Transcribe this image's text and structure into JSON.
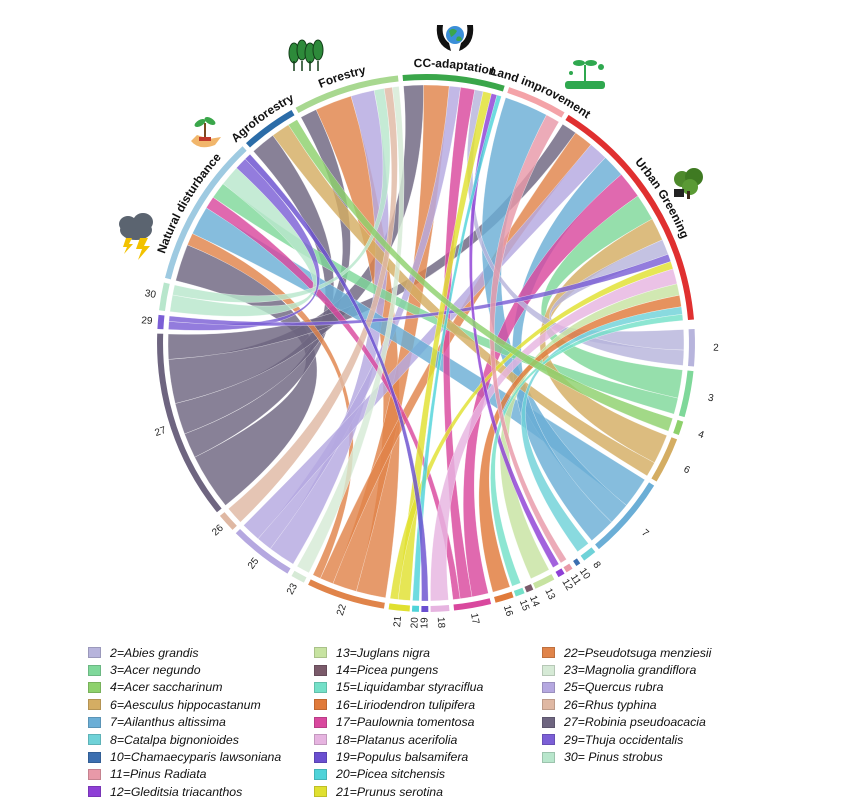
{
  "chart_data": {
    "type": "chord",
    "title": "",
    "sectors": [
      {
        "name": "Natural disturbance",
        "color": "#9ecae1",
        "icon": "storm-cloud-icon"
      },
      {
        "name": "Agroforestry",
        "color": "#2b6ca8",
        "icon": "hand-plant-icon"
      },
      {
        "name": "Forestry",
        "color": "#a8d890",
        "icon": "trees-icon"
      },
      {
        "name": "CC-adaptation",
        "color": "#3aa64a",
        "icon": "hands-globe-icon"
      },
      {
        "name": "Land improvement",
        "color": "#f4a3a8",
        "icon": "seedling-icon"
      },
      {
        "name": "Urban Greening",
        "color": "#e03030",
        "icon": "urban-tree-icon"
      }
    ],
    "species": [
      {
        "id": "2",
        "label": "2=Abies grandis",
        "color": "#b7b4dc"
      },
      {
        "id": "3",
        "label": "3=Acer negundo",
        "color": "#7fd89a"
      },
      {
        "id": "4",
        "label": "4=Acer saccharinum",
        "color": "#8ed16c"
      },
      {
        "id": "6",
        "label": "6=Aesculus hippocastanum",
        "color": "#d4ad63"
      },
      {
        "id": "7",
        "label": "7=Ailanthus altissima",
        "color": "#6baed6"
      },
      {
        "id": "8",
        "label": "8=Catalpa bignonioides",
        "color": "#6fd2d8"
      },
      {
        "id": "10",
        "label": "10=Chamaecyparis lawsoniana",
        "color": "#3b6fb0"
      },
      {
        "id": "11",
        "label": "11=Pinus Radiata",
        "color": "#e899a8"
      },
      {
        "id": "12",
        "label": "12=Gleditsia triacanthos",
        "color": "#8e3fd6"
      },
      {
        "id": "13",
        "label": "13=Juglans nigra",
        "color": "#c7e3a1"
      },
      {
        "id": "14",
        "label": "14=Picea pungens",
        "color": "#7a5a6a"
      },
      {
        "id": "15",
        "label": "15=Liquidambar styraciflua",
        "color": "#74e0c8"
      },
      {
        "id": "16",
        "label": "16=Liriodendron tulipifera",
        "color": "#e07a3a"
      },
      {
        "id": "17",
        "label": "17=Paulownia tomentosa",
        "color": "#d9489e"
      },
      {
        "id": "18",
        "label": "18=Platanus acerifolia",
        "color": "#e6b4e0"
      },
      {
        "id": "19",
        "label": "19=Populus balsamifera",
        "color": "#6a4fd0"
      },
      {
        "id": "20",
        "label": "20=Picea sitchensis",
        "color": "#4fd3d9"
      },
      {
        "id": "21",
        "label": "21=Prunus serotina",
        "color": "#e0e030"
      },
      {
        "id": "22",
        "label": "22=Pseudotsuga menziesii",
        "color": "#e0844a"
      },
      {
        "id": "23",
        "label": "23=Magnolia grandiflora",
        "color": "#d6ead6"
      },
      {
        "id": "25",
        "label": "25=Quercus rubra",
        "color": "#b5a8e0"
      },
      {
        "id": "26",
        "label": "26=Rhus typhina",
        "color": "#dfb8a3"
      },
      {
        "id": "27",
        "label": "27=Robinia pseudoacacia",
        "color": "#6e6580"
      },
      {
        "id": "29",
        "label": "29=Thuja occidentalis",
        "color": "#7b5fd6"
      },
      {
        "id": "30",
        "label": "30= Pinus strobus",
        "color": "#b8e6cc"
      }
    ]
  }
}
